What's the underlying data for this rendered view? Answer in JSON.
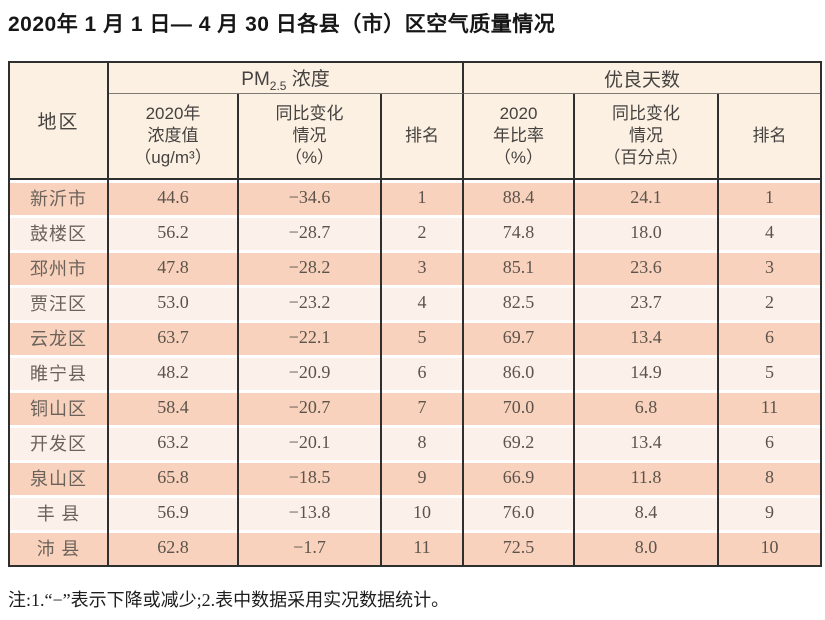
{
  "title": "2020年 1 月 1 日— 4 月 30 日各县（市）区空气质量情况",
  "table": {
    "region_header": "地区",
    "pm_group": {
      "prefix": "PM",
      "sub": "2.5",
      "suffix": " 浓度"
    },
    "good_group_label": "优良天数",
    "sub_headers": [
      "2020年\n浓度值\n（ug/m³）",
      "同比变化\n情况\n（%）",
      "排名",
      "2020\n年比率\n（%）",
      "同比变化\n情况\n（百分点）",
      "排名"
    ],
    "rows": [
      {
        "region": "新沂市",
        "pm_value": "44.6",
        "pm_change": "−34.6",
        "pm_rank": "1",
        "ratio": "88.4",
        "ratio_change": "24.1",
        "ratio_rank": "1"
      },
      {
        "region": "鼓楼区",
        "pm_value": "56.2",
        "pm_change": "−28.7",
        "pm_rank": "2",
        "ratio": "74.8",
        "ratio_change": "18.0",
        "ratio_rank": "4"
      },
      {
        "region": "邳州市",
        "pm_value": "47.8",
        "pm_change": "−28.2",
        "pm_rank": "3",
        "ratio": "85.1",
        "ratio_change": "23.6",
        "ratio_rank": "3"
      },
      {
        "region": "贾汪区",
        "pm_value": "53.0",
        "pm_change": "−23.2",
        "pm_rank": "4",
        "ratio": "82.5",
        "ratio_change": "23.7",
        "ratio_rank": "2"
      },
      {
        "region": "云龙区",
        "pm_value": "63.7",
        "pm_change": "−22.1",
        "pm_rank": "5",
        "ratio": "69.7",
        "ratio_change": "13.4",
        "ratio_rank": "6"
      },
      {
        "region": "睢宁县",
        "pm_value": "48.2",
        "pm_change": "−20.9",
        "pm_rank": "6",
        "ratio": "86.0",
        "ratio_change": "14.9",
        "ratio_rank": "5"
      },
      {
        "region": "铜山区",
        "pm_value": "58.4",
        "pm_change": "−20.7",
        "pm_rank": "7",
        "ratio": "70.0",
        "ratio_change": "6.8",
        "ratio_rank": "11"
      },
      {
        "region": "开发区",
        "pm_value": "63.2",
        "pm_change": "−20.1",
        "pm_rank": "8",
        "ratio": "69.2",
        "ratio_change": "13.4",
        "ratio_rank": "6"
      },
      {
        "region": "泉山区",
        "pm_value": "65.8",
        "pm_change": "−18.5",
        "pm_rank": "9",
        "ratio": "66.9",
        "ratio_change": "11.8",
        "ratio_rank": "8"
      },
      {
        "region": "丰 县",
        "pm_value": "56.9",
        "pm_change": "−13.8",
        "pm_rank": "10",
        "ratio": "76.0",
        "ratio_change": "8.4",
        "ratio_rank": "9"
      },
      {
        "region": "沛 县",
        "pm_value": "62.8",
        "pm_change": "−1.7",
        "pm_rank": "11",
        "ratio": "72.5",
        "ratio_change": "8.0",
        "ratio_rank": "10"
      }
    ]
  },
  "note": "注:1.“−”表示下降或减少;2.表中数据采用实况数据统计。",
  "colors": {
    "row_dark": "#f8d2bd",
    "row_light": "#fcf1ea",
    "header_bg": "#fcf0e2",
    "grid_border": "#2f2f2f"
  }
}
